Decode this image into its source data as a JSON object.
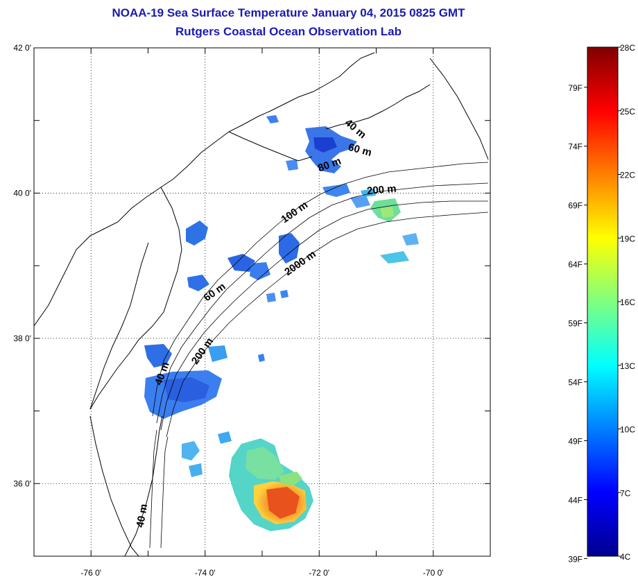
{
  "title": "NOAA-19 Sea Surface Temperature January 04, 2015 0825 GMT",
  "subtitle": "Rutgers Coastal Ocean Observation Lab",
  "map": {
    "lon_range": [
      -77,
      -69
    ],
    "lat_range": [
      35,
      42
    ],
    "lon_ticks": [
      -76,
      -74,
      -72,
      -70
    ],
    "lat_ticks": [
      36,
      38,
      40,
      42
    ],
    "lon_labels": [
      "-76 0'",
      "-74 0'",
      "-72 0'",
      "-70 0'"
    ],
    "lat_labels": [
      "36 0'",
      "38 0'",
      "40 0'",
      "42 0'"
    ],
    "grid": "dotted",
    "contour_labels": [
      {
        "text": "40 m",
        "lon": -71.4,
        "lat": 40.85,
        "angle": 40
      },
      {
        "text": "60 m",
        "lon": -71.3,
        "lat": 40.55,
        "angle": 15
      },
      {
        "text": "80 m",
        "lon": -71.8,
        "lat": 40.35,
        "angle": -20
      },
      {
        "text": "200 m",
        "lon": -70.9,
        "lat": 40.0,
        "angle": -5
      },
      {
        "text": "100 m",
        "lon": -72.4,
        "lat": 39.7,
        "angle": -35
      },
      {
        "text": "2000 m",
        "lon": -72.3,
        "lat": 39.0,
        "angle": -35
      },
      {
        "text": "60 m",
        "lon": -73.8,
        "lat": 38.6,
        "angle": -35
      },
      {
        "text": "200 m",
        "lon": -74.0,
        "lat": 37.8,
        "angle": -55
      },
      {
        "text": "40 m",
        "lon": -74.7,
        "lat": 37.5,
        "angle": -70
      },
      {
        "text": "40 m",
        "lon": -75.05,
        "lat": 35.55,
        "angle": -80
      }
    ]
  },
  "colorbar": {
    "celsius_labels": [
      "4C",
      "7C",
      "10C",
      "13C",
      "16C",
      "19C",
      "22C",
      "25C",
      "28C"
    ],
    "celsius_values": [
      4,
      7,
      10,
      13,
      16,
      19,
      22,
      25,
      28
    ],
    "fahrenheit_labels": [
      "39F",
      "44F",
      "49F",
      "54F",
      "59F",
      "64F",
      "69F",
      "74F",
      "79F"
    ],
    "fahrenheit_values": [
      39,
      44,
      49,
      54,
      59,
      64,
      69,
      74,
      79
    ],
    "range_c": [
      4,
      28
    ],
    "colormap": "jet"
  }
}
